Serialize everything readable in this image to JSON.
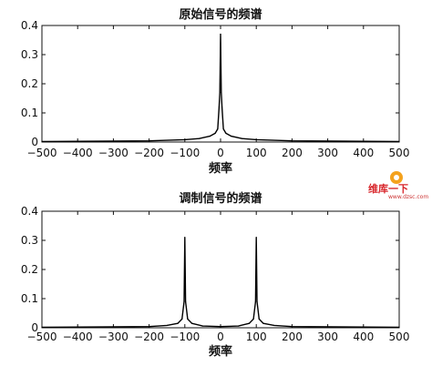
{
  "chart_data": [
    {
      "type": "line",
      "title": "原始信号的频谱",
      "xlabel": "频率",
      "ylabel": "",
      "xlim": [
        -500,
        500
      ],
      "ylim": [
        0,
        0.4
      ],
      "xticks": [
        "-500",
        "-400",
        "-300",
        "-200",
        "-100",
        "0",
        "100",
        "200",
        "300",
        "400",
        "500"
      ],
      "yticks": [
        "0",
        "0.1",
        "0.2",
        "0.3",
        "0.4"
      ],
      "grid": false,
      "series": [
        {
          "x": [
            -500,
            -200,
            -100,
            -60,
            -30,
            -15,
            -8,
            -4,
            -2,
            0,
            2,
            4,
            8,
            15,
            30,
            60,
            100,
            200,
            500
          ],
          "values": [
            0.002,
            0.004,
            0.008,
            0.012,
            0.02,
            0.03,
            0.045,
            0.12,
            0.17,
            0.37,
            0.17,
            0.12,
            0.045,
            0.03,
            0.02,
            0.012,
            0.008,
            0.004,
            0.002
          ]
        }
      ]
    },
    {
      "type": "line",
      "title": "调制信号的频谱",
      "xlabel": "频率",
      "ylabel": "",
      "xlim": [
        -500,
        500
      ],
      "ylim": [
        0,
        0.4
      ],
      "xticks": [
        "-500",
        "-400",
        "-300",
        "-200",
        "-100",
        "0",
        "100",
        "200",
        "300",
        "400",
        "500"
      ],
      "yticks": [
        "0",
        "0.1",
        "0.2",
        "0.3",
        "0.4"
      ],
      "grid": false,
      "series": [
        {
          "x": [
            -500,
            -200,
            -150,
            -120,
            -108,
            -102,
            -100,
            -98,
            -92,
            -80,
            -50,
            0,
            50,
            80,
            92,
            98,
            100,
            102,
            108,
            120,
            150,
            200,
            500
          ],
          "values": [
            0.002,
            0.004,
            0.008,
            0.015,
            0.03,
            0.09,
            0.31,
            0.09,
            0.03,
            0.015,
            0.006,
            0.004,
            0.006,
            0.015,
            0.03,
            0.09,
            0.31,
            0.09,
            0.03,
            0.015,
            0.008,
            0.004,
            0.002
          ]
        }
      ]
    }
  ],
  "watermark": {
    "text": "维库一下",
    "url": "www.dzsc.com"
  }
}
